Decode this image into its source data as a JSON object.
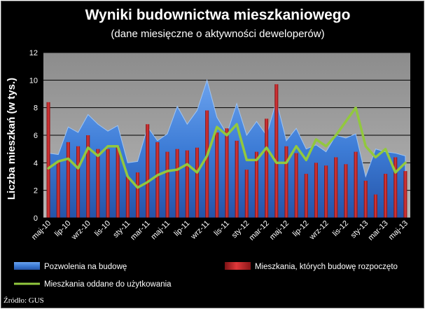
{
  "chart_data": {
    "type": "bar",
    "title": "Wyniki budownictwa mieszkaniowego",
    "subtitle": "(dane miesięczne o aktywności deweloperów)",
    "ylabel": "Liczba mieszkań (w tys.)",
    "xlabel": "",
    "ylim": [
      0,
      12
    ],
    "yticks": [
      0,
      2,
      4,
      6,
      8,
      10,
      12
    ],
    "grid": true,
    "legend_position": "bottom",
    "source": "Źródło: GUS",
    "categories": [
      "maj-10",
      "cze-10",
      "lip-10",
      "sie-10",
      "wrz-10",
      "paź-10",
      "lis-10",
      "gru-10",
      "sty-11",
      "lut-11",
      "mar-11",
      "kwi-11",
      "maj-11",
      "cze-11",
      "lip-11",
      "sie-11",
      "wrz-11",
      "paź-11",
      "lis-11",
      "gru-11",
      "sty-12",
      "lut-12",
      "mar-12",
      "kwi-12",
      "maj-12",
      "cze-12",
      "lip-12",
      "sie-12",
      "wrz-12",
      "paź-12",
      "lis-12",
      "gru-12",
      "sty-13",
      "lut-13",
      "mar-13",
      "kwi-13",
      "maj-13"
    ],
    "tick_labels": [
      "maj-10",
      "lip-10",
      "wrz-10",
      "lis-10",
      "sty-11",
      "mar-11",
      "maj-11",
      "lip-11",
      "wrz-11",
      "lis-11",
      "sty-12",
      "mar-12",
      "maj-12",
      "lip-12",
      "wrz-12",
      "lis-12",
      "sty-13",
      "mar-13",
      "maj-13"
    ],
    "series": [
      {
        "name": "Pozwolenia na budowę",
        "type": "area",
        "color": "#3f7fd6",
        "values": [
          4.7,
          4.6,
          6.6,
          6.2,
          7.5,
          6.8,
          6.3,
          6.7,
          4.0,
          4.1,
          6.6,
          5.6,
          6.1,
          8.1,
          6.8,
          7.8,
          10.0,
          7.3,
          6.1,
          8.3,
          6.0,
          7.0,
          6.0,
          8.5,
          5.6,
          6.5,
          5.0,
          5.3,
          4.8,
          6.0,
          5.8,
          6.1,
          3.0,
          5.0,
          4.8,
          4.7,
          4.5
        ]
      },
      {
        "name": "Mieszkania, których budowę rozpoczęto",
        "type": "bar",
        "color": "#c8282a",
        "values": [
          8.4,
          4.1,
          5.5,
          5.2,
          6.0,
          5.0,
          5.0,
          5.2,
          3.0,
          3.3,
          6.8,
          5.5,
          4.8,
          5.0,
          4.9,
          5.1,
          7.8,
          6.2,
          6.5,
          5.6,
          3.5,
          4.8,
          7.2,
          9.7,
          5.2,
          4.7,
          3.2,
          4.0,
          3.8,
          4.4,
          3.9,
          4.8,
          2.7,
          1.7,
          3.2,
          4.4,
          3.4
        ]
      },
      {
        "name": "Mieszkania oddane do użytkowania",
        "type": "line",
        "color": "#92c83e",
        "values": [
          3.6,
          4.1,
          4.3,
          3.6,
          5.1,
          4.5,
          5.2,
          5.2,
          3.0,
          2.2,
          2.6,
          3.1,
          3.4,
          3.5,
          3.9,
          3.3,
          4.5,
          6.6,
          6.0,
          6.8,
          4.2,
          4.2,
          5.1,
          4.0,
          4.0,
          5.2,
          4.2,
          5.7,
          5.2,
          6.0,
          7.0,
          8.0,
          5.2,
          4.4,
          5.0,
          3.3,
          4.0
        ]
      }
    ]
  }
}
